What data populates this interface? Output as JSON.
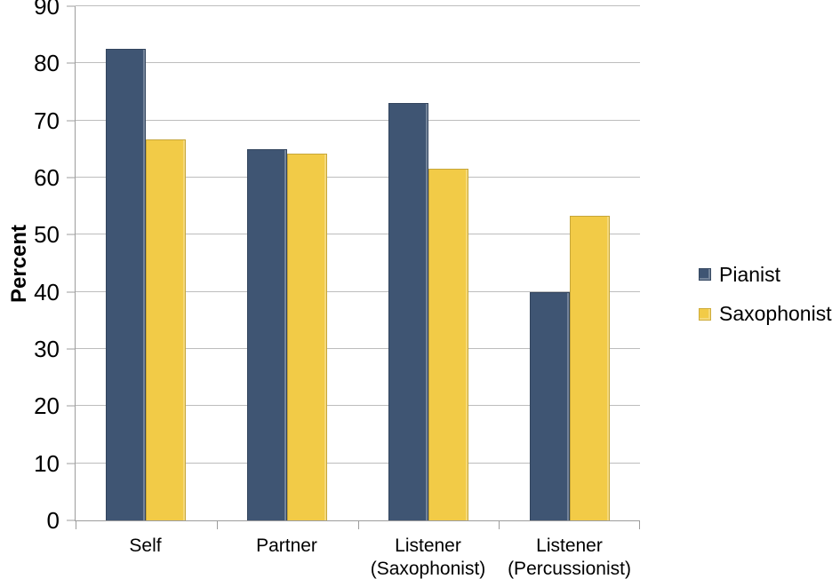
{
  "chart_data": {
    "type": "bar",
    "title": "",
    "ylabel": "Percent",
    "xlabel": "",
    "ylim": [
      0,
      90
    ],
    "ytick_step": 10,
    "grid": true,
    "legend_position": "right",
    "categories": [
      "Self",
      "Partner",
      "Listener\n(Saxophonist)",
      "Listener\n(Percussionist)"
    ],
    "series": [
      {
        "name": "Pianist",
        "color": "#3F5573",
        "values": [
          82.5,
          65.0,
          73.0,
          40.0
        ]
      },
      {
        "name": "Saxophonist",
        "color": "#F2CB47",
        "values": [
          66.7,
          64.2,
          61.5,
          53.3
        ]
      }
    ]
  },
  "style": {
    "background": "#FFFFFF",
    "gridline_color": "#BDBDBD",
    "axis_color": "#9D9D9D",
    "text_color": "#000000"
  }
}
